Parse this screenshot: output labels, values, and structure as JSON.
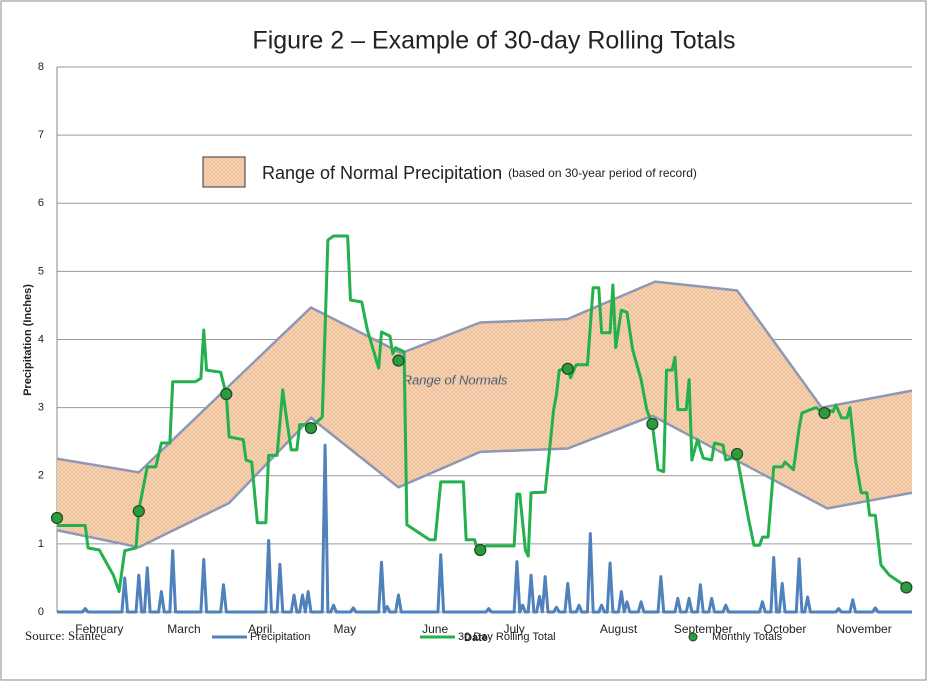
{
  "chart_data": {
    "type": "line",
    "title": "Figure 2 – Example of 30-day Rolling Totals",
    "xlabel": "Date",
    "ylabel": "Precipitation (Inches)",
    "source": "Source: Stantec",
    "annotation": "Range of Normals",
    "ylim": [
      0,
      8
    ],
    "yticks": [
      0,
      1,
      2,
      3,
      4,
      5,
      6,
      7,
      8
    ],
    "xlim": [
      0,
      303
    ],
    "xticks": [
      {
        "value": 15,
        "label": "February"
      },
      {
        "value": 45,
        "label": "March"
      },
      {
        "value": 72,
        "label": "April"
      },
      {
        "value": 102,
        "label": "May"
      },
      {
        "value": 134,
        "label": "June"
      },
      {
        "value": 162,
        "label": "July"
      },
      {
        "value": 199,
        "label": "August"
      },
      {
        "value": 229,
        "label": "September"
      },
      {
        "value": 258,
        "label": "October"
      },
      {
        "value": 286,
        "label": "November"
      }
    ],
    "grid": true,
    "range": {
      "name": "Range of Normal Precipitation",
      "note": "(based on 30-year period of record)",
      "color": "#f8d5b5",
      "edge_color": "#8e98b3",
      "upper": {
        "x": [
          0,
          29,
          90,
          122,
          150,
          181,
          212,
          241,
          271,
          303
        ],
        "values": [
          2.25,
          2.05,
          4.47,
          3.8,
          4.25,
          4.3,
          4.85,
          4.72,
          3.0,
          3.25
        ]
      },
      "lower": {
        "x": [
          0,
          29,
          61,
          90,
          121,
          150,
          181,
          211,
          273,
          303
        ],
        "values": [
          1.2,
          0.95,
          1.6,
          2.85,
          1.83,
          2.35,
          2.4,
          2.88,
          1.52,
          1.75
        ]
      }
    },
    "series": [
      {
        "name": "Precipitation",
        "type": "line",
        "color": "#4f81bd",
        "x": [
          0,
          9,
          10,
          11,
          23,
          24,
          25,
          28,
          29,
          30,
          31,
          32,
          33,
          36,
          37,
          38,
          40,
          41,
          42,
          51,
          52,
          53,
          58,
          59,
          60,
          74,
          75,
          76,
          78,
          79,
          80,
          83,
          84,
          85,
          86,
          87,
          88,
          89,
          90,
          94,
          95,
          96,
          97,
          98,
          99,
          104,
          105,
          106,
          114,
          115,
          116,
          117,
          118,
          120,
          121,
          122,
          135,
          136,
          137,
          152,
          153,
          154,
          162,
          163,
          164,
          165,
          166,
          167,
          168,
          169,
          170,
          171,
          172,
          173,
          174,
          176,
          177,
          178,
          180,
          181,
          182,
          184,
          185,
          186,
          188,
          189,
          190,
          192,
          193,
          194,
          195,
          196,
          197,
          199,
          200,
          201,
          202,
          203,
          206,
          207,
          208,
          213,
          214,
          215,
          219,
          220,
          221,
          223,
          224,
          225,
          227,
          228,
          229,
          231,
          232,
          233,
          236,
          237,
          238,
          249,
          250,
          251,
          253,
          254,
          255,
          256,
          257,
          258,
          262,
          263,
          264,
          265,
          266,
          267,
          276,
          277,
          278,
          281,
          282,
          283,
          289,
          290,
          291,
          303
        ],
        "values": [
          0,
          0,
          0.05,
          0,
          0,
          0.5,
          0,
          0,
          0.54,
          0,
          0,
          0.65,
          0,
          0,
          0.3,
          0,
          0,
          0.9,
          0,
          0,
          0.77,
          0,
          0,
          0.4,
          0,
          0,
          1.05,
          0,
          0,
          0.7,
          0,
          0,
          0.25,
          0,
          0,
          0.25,
          0,
          0.3,
          0,
          0,
          2.45,
          0,
          0,
          0.1,
          0,
          0,
          0.06,
          0,
          0,
          0.73,
          0,
          0.08,
          0,
          0,
          0.25,
          0,
          0,
          0.84,
          0,
          0,
          0.05,
          0,
          0,
          0.74,
          0,
          0.1,
          0,
          0,
          0.54,
          0,
          0,
          0.23,
          0,
          0.52,
          0,
          0,
          0.07,
          0,
          0,
          0.42,
          0,
          0,
          0.1,
          0,
          0,
          1.15,
          0,
          0,
          0.1,
          0,
          0,
          0.72,
          0,
          0,
          0.3,
          0,
          0.15,
          0,
          0,
          0.15,
          0,
          0,
          0.52,
          0,
          0,
          0.2,
          0,
          0,
          0.2,
          0,
          0,
          0.4,
          0,
          0,
          0.2,
          0,
          0,
          0.1,
          0,
          0,
          0.15,
          0,
          0,
          0.8,
          0,
          0,
          0.42,
          0,
          0,
          0.78,
          0,
          0,
          0.22,
          0,
          0,
          0.05,
          0,
          0,
          0.18,
          0,
          0,
          0.06,
          0,
          0
        ]
      },
      {
        "name": "30 Day Rolling Total",
        "type": "line",
        "color": "#22b14c",
        "x": [
          0,
          10,
          11,
          15,
          17,
          20,
          22,
          24,
          28,
          29,
          32,
          35,
          37,
          40,
          41,
          49,
          51,
          52,
          53,
          58,
          60,
          61,
          66,
          67,
          69,
          71,
          74,
          75,
          78,
          80,
          81,
          83,
          85,
          86,
          91,
          94,
          96,
          98,
          103,
          104,
          108,
          110,
          114,
          115,
          118,
          119,
          120,
          123,
          124,
          132,
          134,
          136,
          144,
          145,
          148,
          149,
          152,
          162,
          163,
          164,
          166,
          167,
          168,
          173,
          174,
          176,
          177,
          178,
          181,
          182,
          184,
          188,
          190,
          192,
          193,
          196,
          197,
          198,
          200,
          202,
          204,
          207,
          209,
          211,
          213,
          215,
          216,
          218,
          219,
          220,
          223,
          224,
          225,
          227,
          229,
          232,
          233,
          236,
          237,
          241,
          245,
          247,
          249,
          250,
          252,
          254,
          257,
          258,
          261,
          263,
          264,
          267,
          269,
          271,
          273,
          275,
          276,
          278,
          280,
          281,
          283,
          285,
          287,
          288,
          290,
          292,
          295,
          301,
          303
        ],
        "values": [
          1.27,
          1.27,
          0.94,
          0.91,
          0.76,
          0.54,
          0.3,
          0.9,
          0.94,
          1.5,
          2.13,
          2.13,
          2.48,
          2.48,
          3.38,
          3.38,
          3.43,
          4.14,
          3.55,
          3.52,
          3.19,
          2.57,
          2.53,
          2.23,
          2.2,
          1.31,
          1.31,
          2.3,
          2.3,
          3.26,
          2.94,
          2.38,
          2.38,
          2.75,
          2.75,
          2.86,
          5.46,
          5.52,
          5.52,
          4.58,
          4.55,
          4.14,
          3.58,
          4.11,
          4.05,
          3.79,
          3.88,
          3.82,
          1.28,
          1.06,
          1.06,
          1.91,
          1.91,
          1.06,
          1.06,
          0.91,
          0.97,
          0.97,
          1.73,
          1.73,
          0.91,
          0.82,
          1.75,
          1.76,
          2.16,
          2.97,
          3.19,
          3.55,
          3.58,
          3.44,
          3.63,
          3.63,
          4.76,
          4.76,
          4.1,
          4.1,
          4.8,
          3.88,
          4.43,
          4.4,
          3.85,
          3.41,
          2.97,
          2.75,
          2.09,
          2.06,
          3.55,
          3.55,
          3.74,
          2.97,
          2.97,
          3.41,
          2.23,
          2.53,
          2.26,
          2.23,
          2.48,
          2.45,
          2.23,
          2.28,
          1.38,
          0.98,
          0.98,
          1.1,
          1.1,
          2.13,
          2.13,
          2.2,
          2.09,
          2.7,
          2.92,
          2.97,
          3.0,
          2.94,
          2.97,
          2.94,
          3.04,
          2.85,
          2.85,
          3.0,
          2.23,
          1.75,
          1.75,
          1.42,
          1.42,
          0.69,
          0.54,
          0.37,
          0.37
        ]
      },
      {
        "name": "Monthly Totals",
        "type": "scatter",
        "color": "#2e9a3c",
        "x": [
          0,
          29,
          60,
          90,
          121,
          150,
          181,
          211,
          241,
          272,
          301
        ],
        "values": [
          1.38,
          1.48,
          3.2,
          2.7,
          3.69,
          0.91,
          3.57,
          2.76,
          2.32,
          2.92,
          0.36
        ]
      }
    ]
  }
}
